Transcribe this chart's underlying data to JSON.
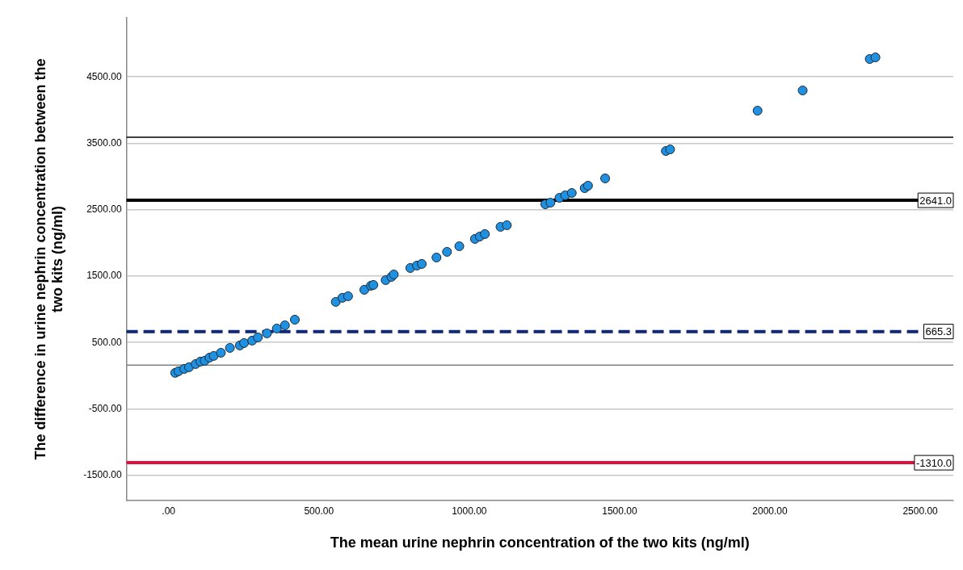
{
  "chart_data": {
    "type": "scatter",
    "xlabel": "The mean urine nephrin concentration of the two kits (ng/ml)",
    "ylabel": "The difference in urine nephrin concentration between the two kits (ng/ml)",
    "x": [
      22,
      33,
      52,
      68,
      90,
      106,
      120,
      136,
      150,
      174,
      204,
      237,
      251,
      278,
      297,
      327,
      360,
      387,
      420,
      556,
      578,
      597,
      651,
      673,
      681,
      722,
      741,
      749,
      804,
      826,
      842,
      891,
      926,
      967,
      1019,
      1035,
      1052,
      1104,
      1125,
      1253,
      1270,
      1300,
      1319,
      1341,
      1384,
      1395,
      1452,
      1654,
      1668,
      1959,
      2109,
      2332,
      2351
    ],
    "series": [
      {
        "color": "#2090e0",
        "values": [
          43,
          67,
          103,
          128,
          176,
          213,
          225,
          273,
          298,
          346,
          419,
          456,
          492,
          529,
          577,
          638,
          711,
          759,
          844,
          1112,
          1173,
          1197,
          1294,
          1355,
          1367,
          1440,
          1488,
          1525,
          1622,
          1659,
          1683,
          1780,
          1865,
          1950,
          2060,
          2096,
          2133,
          2242,
          2266,
          2582,
          2606,
          2679,
          2716,
          2752,
          2825,
          2861,
          2971,
          3384,
          3408,
          3991,
          4295,
          4769,
          4793
        ]
      }
    ],
    "marker": "circle",
    "xlim": [
      -140,
      2610
    ],
    "xticks": [
      {
        "value": 0,
        "label": ".00"
      },
      {
        "value": 500,
        "label": "500.00"
      },
      {
        "value": 1000,
        "label": "1000.00"
      },
      {
        "value": 1500,
        "label": "1500.00"
      },
      {
        "value": 2000,
        "label": "2000.00"
      },
      {
        "value": 2500,
        "label": "2500.00"
      }
    ],
    "ylim": [
      -1880,
      5390
    ],
    "yticks": [
      {
        "value": -1500,
        "label": "-1500.00"
      },
      {
        "value": -500,
        "label": "-500.00"
      },
      {
        "value": 500,
        "label": "500.00"
      },
      {
        "value": 1500,
        "label": "1500.00"
      },
      {
        "value": 2500,
        "label": "2500.00"
      },
      {
        "value": 3500,
        "label": "3500.00"
      },
      {
        "value": 4500,
        "label": "4500.00"
      }
    ],
    "grid": "y",
    "ref_lines": [
      {
        "axis": "y",
        "value": 3590,
        "color": "#000000",
        "line_style": "solid"
      },
      {
        "axis": "y",
        "value": 2641,
        "label": "2641.0",
        "color": "#000000",
        "line_style": "solid"
      },
      {
        "axis": "y",
        "value": 665.3,
        "label": "665.3",
        "color": "#102878",
        "line_style": "dashed"
      },
      {
        "axis": "y",
        "value": 160,
        "color": "#808080",
        "line_style": "solid"
      },
      {
        "axis": "y",
        "value": -1310,
        "label": "-1310.0",
        "color": "#e0103c",
        "line_style": "solid"
      }
    ]
  }
}
